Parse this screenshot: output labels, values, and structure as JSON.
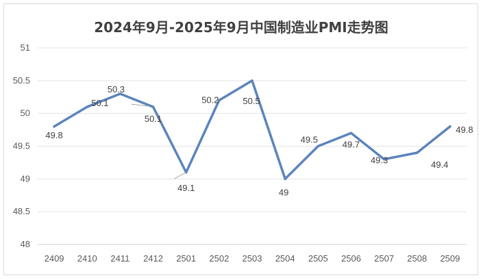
{
  "chart_data": {
    "type": "line",
    "title": "2024年9月-2025年9月中国制造业PMI走势图",
    "xlabel": "",
    "ylabel": "",
    "categories": [
      "2409",
      "2410",
      "2411",
      "2412",
      "2501",
      "2502",
      "2503",
      "2504",
      "2505",
      "2506",
      "2507",
      "2508",
      "2509"
    ],
    "series": [
      {
        "values": [
          49.8,
          50.1,
          50.3,
          50.1,
          49.1,
          50.2,
          50.5,
          49,
          49.5,
          49.7,
          49.3,
          49.4,
          49.8
        ]
      }
    ],
    "data_labels": [
      "49.8",
      "50.1",
      "50.3",
      "50.1",
      "49.1",
      "50.2",
      "50.5",
      "49",
      "49.5",
      "49.7",
      "49.3",
      "49.4",
      "49.8"
    ],
    "yticks": [
      "48",
      "48.5",
      "49",
      "49.5",
      "50",
      "50.5",
      "51"
    ],
    "ylim": [
      48,
      51
    ],
    "grid": true,
    "legend": "none",
    "line_color": "#5b84bb"
  }
}
